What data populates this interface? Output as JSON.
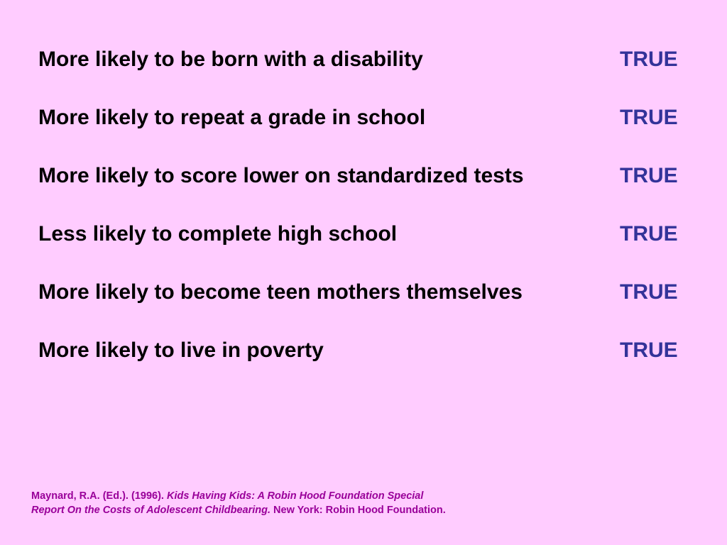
{
  "colors": {
    "background": "#FFCCFF",
    "statement_text": "#000000",
    "answer_text": "#333399",
    "citation_text": "#990099"
  },
  "statements": [
    {
      "text": "More likely to be born with a disability",
      "answer": "TRUE"
    },
    {
      "text": "More likely to repeat a grade in school",
      "answer": "TRUE"
    },
    {
      "text": "More likely to score lower on standardized tests",
      "answer": "TRUE"
    },
    {
      "text": "Less likely to complete high school",
      "answer": "TRUE"
    },
    {
      "text": "More likely to become teen mothers themselves",
      "answer": "TRUE"
    },
    {
      "text": "More likely to live in poverty",
      "answer": "TRUE"
    }
  ],
  "citation": {
    "authors": "Maynard, R.A. (Ed.). (1996). ",
    "title_line1": "Kids Having Kids: A Robin Hood Foundation Special",
    "title_line2": "Report On the Costs of Adolescent Childbearing.",
    "publisher": " New York: Robin Hood Foundation."
  }
}
